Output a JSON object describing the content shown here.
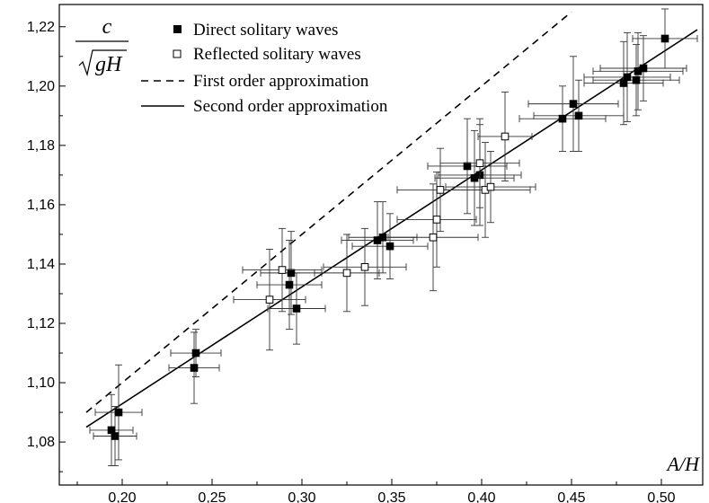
{
  "chart_data": {
    "type": "scatter",
    "xlabel": "A/H",
    "ylabel": {
      "numerator": "c",
      "denominator": "gH"
    },
    "xlim": [
      0.165,
      0.523
    ],
    "ylim": [
      1.0655,
      1.2275
    ],
    "x_ticks": [
      0.2,
      0.25,
      0.3,
      0.35,
      0.4,
      0.45,
      0.5
    ],
    "x_tick_labels": [
      "0,20",
      "0,25",
      "0,30",
      "0,35",
      "0,40",
      "0,45",
      "0,50"
    ],
    "y_ticks": [
      1.08,
      1.1,
      1.12,
      1.14,
      1.16,
      1.18,
      1.2,
      1.22
    ],
    "y_tick_labels": [
      "1,08",
      "1,10",
      "1,12",
      "1,14",
      "1,16",
      "1,18",
      "1,20",
      "1,22"
    ],
    "grid": false,
    "legend_position": "top-left",
    "series": [
      {
        "name": "Direct solitary waves",
        "marker": "filled-square",
        "points": [
          {
            "x": 0.194,
            "y": 1.084,
            "ex": 0.012,
            "ey": 0.012
          },
          {
            "x": 0.196,
            "y": 1.082,
            "ex": 0.012,
            "ey": 0.01
          },
          {
            "x": 0.198,
            "y": 1.09,
            "ex": 0.013,
            "ey": 0.016
          },
          {
            "x": 0.24,
            "y": 1.105,
            "ex": 0.014,
            "ey": 0.012
          },
          {
            "x": 0.241,
            "y": 1.11,
            "ex": 0.014,
            "ey": 0.008
          },
          {
            "x": 0.293,
            "y": 1.133,
            "ex": 0.018,
            "ey": 0.015
          },
          {
            "x": 0.294,
            "y": 1.137,
            "ex": 0.017,
            "ey": 0.014
          },
          {
            "x": 0.297,
            "y": 1.125,
            "ex": 0.016,
            "ey": 0.012
          },
          {
            "x": 0.342,
            "y": 1.148,
            "ex": 0.02,
            "ey": 0.013
          },
          {
            "x": 0.345,
            "y": 1.149,
            "ex": 0.019,
            "ey": 0.012
          },
          {
            "x": 0.349,
            "y": 1.146,
            "ex": 0.021,
            "ey": 0.011
          },
          {
            "x": 0.392,
            "y": 1.173,
            "ex": 0.022,
            "ey": 0.016
          },
          {
            "x": 0.396,
            "y": 1.169,
            "ex": 0.022,
            "ey": 0.016
          },
          {
            "x": 0.399,
            "y": 1.17,
            "ex": 0.023,
            "ey": 0.017
          },
          {
            "x": 0.445,
            "y": 1.189,
            "ex": 0.024,
            "ey": 0.011
          },
          {
            "x": 0.451,
            "y": 1.194,
            "ex": 0.025,
            "ey": 0.016
          },
          {
            "x": 0.454,
            "y": 1.19,
            "ex": 0.025,
            "ey": 0.012
          },
          {
            "x": 0.479,
            "y": 1.201,
            "ex": 0.022,
            "ey": 0.014
          },
          {
            "x": 0.481,
            "y": 1.203,
            "ex": 0.024,
            "ey": 0.015
          },
          {
            "x": 0.486,
            "y": 1.202,
            "ex": 0.024,
            "ey": 0.012
          },
          {
            "x": 0.487,
            "y": 1.205,
            "ex": 0.025,
            "ey": 0.013
          },
          {
            "x": 0.49,
            "y": 1.206,
            "ex": 0.024,
            "ey": 0.011
          },
          {
            "x": 0.502,
            "y": 1.216,
            "ex": 0.018,
            "ey": 0.01
          }
        ]
      },
      {
        "name": "Reflected solitary waves",
        "marker": "open-square",
        "points": [
          {
            "x": 0.282,
            "y": 1.128,
            "ex": 0.02,
            "ey": 0.017
          },
          {
            "x": 0.289,
            "y": 1.138,
            "ex": 0.022,
            "ey": 0.014
          },
          {
            "x": 0.325,
            "y": 1.137,
            "ex": 0.018,
            "ey": 0.013
          },
          {
            "x": 0.335,
            "y": 1.139,
            "ex": 0.023,
            "ey": 0.013
          },
          {
            "x": 0.373,
            "y": 1.149,
            "ex": 0.025,
            "ey": 0.018
          },
          {
            "x": 0.375,
            "y": 1.155,
            "ex": 0.022,
            "ey": 0.016
          },
          {
            "x": 0.377,
            "y": 1.165,
            "ex": 0.024,
            "ey": 0.014
          },
          {
            "x": 0.399,
            "y": 1.174,
            "ex": 0.022,
            "ey": 0.015
          },
          {
            "x": 0.402,
            "y": 1.165,
            "ex": 0.025,
            "ey": 0.016
          },
          {
            "x": 0.405,
            "y": 1.166,
            "ex": 0.025,
            "ey": 0.012
          },
          {
            "x": 0.413,
            "y": 1.183,
            "ex": 0.015,
            "ey": 0.015
          }
        ]
      },
      {
        "name": "First order approximation",
        "style": "dashed-line",
        "points": [
          {
            "x": 0.18,
            "y": 1.09
          },
          {
            "x": 0.45,
            "y": 1.225
          }
        ]
      },
      {
        "name": "Second order approximation",
        "style": "solid-line",
        "points": [
          {
            "x": 0.18,
            "y": 1.085
          },
          {
            "x": 0.52,
            "y": 1.219
          }
        ]
      }
    ]
  }
}
